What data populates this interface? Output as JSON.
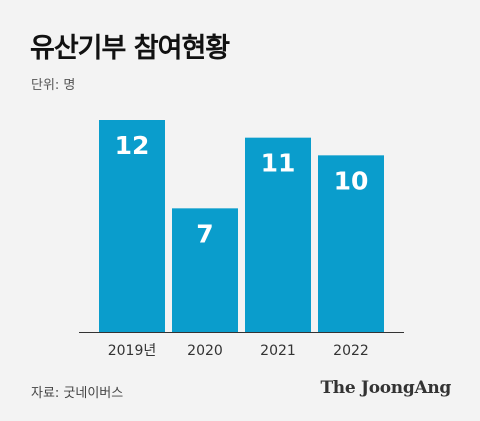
{
  "title": "유산기부 참여현황",
  "unit_label": "단위: 명",
  "source": "자료: 굿네이버스",
  "brand": "The JoongAng",
  "colors": {
    "bar": "#0a9dcc",
    "bar_value_text": "#ffffff",
    "axis": "#333333",
    "background": "#f3f3f3"
  },
  "chart_data": {
    "type": "bar",
    "title": "유산기부 참여현황",
    "unit": "단위: 명",
    "categories": [
      "2019년",
      "2020",
      "2021",
      "2022"
    ],
    "values": [
      12,
      7,
      11,
      10
    ],
    "data_labels": [
      "12",
      "7",
      "11",
      "10"
    ],
    "ylim": [
      0,
      12
    ],
    "grid": false,
    "legend": "none"
  }
}
